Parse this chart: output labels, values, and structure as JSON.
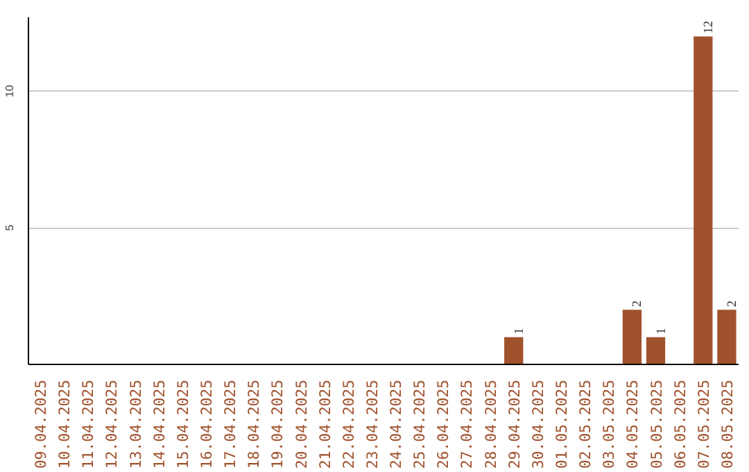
{
  "chart_data": {
    "type": "bar",
    "categories": [
      "09.04.2025",
      "10.04.2025",
      "11.04.2025",
      "12.04.2025",
      "13.04.2025",
      "14.04.2025",
      "15.04.2025",
      "16.04.2025",
      "17.04.2025",
      "18.04.2025",
      "19.04.2025",
      "20.04.2025",
      "21.04.2025",
      "22.04.2025",
      "23.04.2025",
      "24.04.2025",
      "25.04.2025",
      "26.04.2025",
      "27.04.2025",
      "28.04.2025",
      "29.04.2025",
      "30.04.2025",
      "01.05.2025",
      "02.05.2025",
      "03.05.2025",
      "04.05.2025",
      "05.05.2025",
      "06.05.2025",
      "07.05.2025",
      "08.05.2025"
    ],
    "values": [
      0,
      0,
      0,
      0,
      0,
      0,
      0,
      0,
      0,
      0,
      0,
      0,
      0,
      0,
      0,
      0,
      0,
      0,
      0,
      0,
      1,
      0,
      0,
      0,
      0,
      2,
      1,
      0,
      12,
      2
    ],
    "value_labels": [
      null,
      null,
      null,
      null,
      null,
      null,
      null,
      null,
      null,
      null,
      null,
      null,
      null,
      null,
      null,
      null,
      null,
      null,
      null,
      null,
      "1",
      null,
      null,
      null,
      null,
      "2",
      "1",
      null,
      "12",
      "2"
    ],
    "color": "#a0522d",
    "ylim": [
      0,
      12.7
    ],
    "yticks": [
      5,
      10
    ],
    "grid": "y"
  }
}
